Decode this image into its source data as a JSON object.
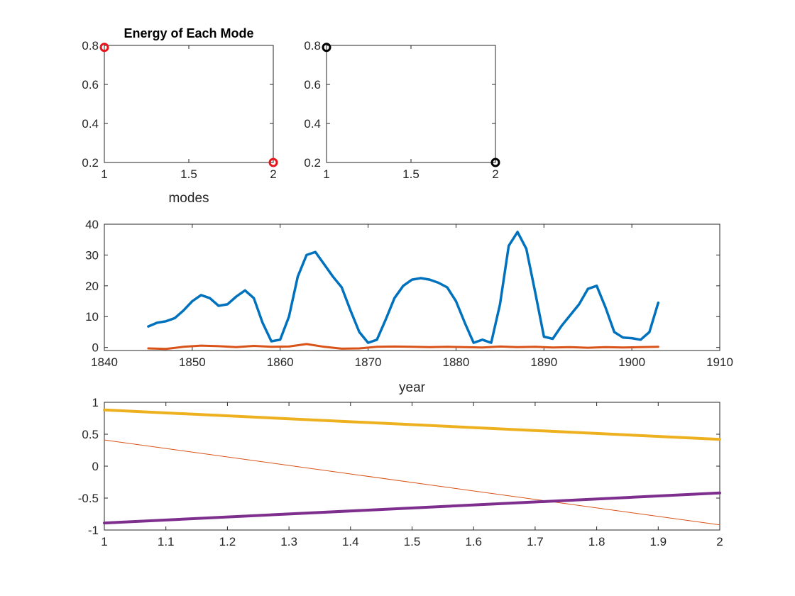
{
  "figure": {
    "background": "#ffffff"
  },
  "chart_data": [
    {
      "id": "energy-left",
      "type": "scatter",
      "title": "Energy of Each Mode",
      "xlabel": "modes",
      "ylabel": "",
      "xlim": [
        1,
        2
      ],
      "ylim": [
        0.2,
        0.8
      ],
      "xticks": [
        "1",
        "1.5",
        "2"
      ],
      "yticks": [
        "0.2",
        "0.4",
        "0.6",
        "0.8"
      ],
      "grid": false,
      "series": [
        {
          "color": "#e8141a",
          "marker": "circle",
          "x": [
            1,
            2
          ],
          "y": [
            0.79,
            0.2
          ]
        }
      ]
    },
    {
      "id": "energy-right",
      "type": "scatter",
      "title": "",
      "xlabel": "",
      "ylabel": "",
      "xlim": [
        1,
        2
      ],
      "ylim": [
        0.2,
        0.8
      ],
      "xticks": [
        "1",
        "1.5",
        "2"
      ],
      "yticks": [
        "0.2",
        "0.4",
        "0.6",
        "0.8"
      ],
      "grid": false,
      "series": [
        {
          "color": "#000000",
          "marker": "circle",
          "x": [
            1,
            2
          ],
          "y": [
            0.79,
            0.2
          ]
        }
      ]
    },
    {
      "id": "modes-vs-year",
      "type": "line",
      "title": "",
      "xlabel": "year",
      "ylabel": "",
      "xlim": [
        1840,
        1910
      ],
      "ylim": [
        -1,
        40
      ],
      "xticks": [
        "1840",
        "1850",
        "1860",
        "1870",
        "1880",
        "1890",
        "1900",
        "1910"
      ],
      "yticks": [
        "0",
        "10",
        "20",
        "30",
        "40"
      ],
      "grid": false,
      "series": [
        {
          "color": "#0072bd",
          "width": 3.5,
          "x": [
            1845,
            1846,
            1847,
            1848,
            1849,
            1850,
            1851,
            1852,
            1853,
            1854,
            1855,
            1856,
            1857,
            1858,
            1859,
            1860,
            1861,
            1862,
            1863,
            1864,
            1865,
            1866,
            1867,
            1868,
            1869,
            1870,
            1871,
            1872,
            1873,
            1874,
            1875,
            1876,
            1877,
            1878,
            1879,
            1880,
            1881,
            1882,
            1883,
            1884,
            1885,
            1886,
            1887,
            1888,
            1889,
            1890,
            1891,
            1892,
            1893,
            1894,
            1895,
            1896,
            1897,
            1898,
            1899,
            1900,
            1901,
            1902,
            1903
          ],
          "y": [
            6.8,
            8,
            8.5,
            9.5,
            12,
            15,
            17,
            16,
            13.5,
            14,
            16.5,
            18.5,
            16,
            8,
            2,
            2.5,
            10,
            23,
            30,
            31,
            27,
            23,
            19.5,
            12,
            5,
            1.5,
            2.5,
            9,
            16,
            20,
            22,
            22.5,
            22,
            21,
            19.5,
            15,
            8,
            1.5,
            2.5,
            1.5,
            14,
            33,
            37.5,
            32,
            18,
            3.5,
            2.8,
            7,
            10.5,
            14,
            19,
            20,
            13,
            5,
            3.2,
            3,
            2.5,
            5,
            14.5
          ]
        },
        {
          "color": "#d95319",
          "width": 3,
          "x": [
            1845,
            1847,
            1849,
            1851,
            1853,
            1855,
            1857,
            1859,
            1861,
            1863,
            1865,
            1867,
            1869,
            1871,
            1873,
            1875,
            1877,
            1879,
            1881,
            1883,
            1885,
            1887,
            1889,
            1891,
            1893,
            1895,
            1897,
            1899,
            1901,
            1903
          ],
          "y": [
            -0.3,
            -0.5,
            0.2,
            0.6,
            0.4,
            0.1,
            0.5,
            0.2,
            0.3,
            1.1,
            0.2,
            -0.4,
            -0.3,
            0.2,
            0.3,
            0.2,
            0.1,
            0.2,
            0.1,
            0,
            0.3,
            0.1,
            0.2,
            0,
            0.1,
            -0.1,
            0.1,
            0,
            0.1,
            0.2
          ]
        }
      ]
    },
    {
      "id": "linear-modes",
      "type": "line",
      "title": "",
      "xlabel": "",
      "ylabel": "",
      "xlim": [
        1,
        2
      ],
      "ylim": [
        -1,
        1
      ],
      "xticks": [
        "1",
        "1.1",
        "1.2",
        "1.3",
        "1.4",
        "1.5",
        "1.6",
        "1.7",
        "1.8",
        "1.9",
        "2"
      ],
      "yticks": [
        "-1",
        "-0.5",
        "0",
        "0.5",
        "1"
      ],
      "grid": false,
      "series": [
        {
          "color": "#0072bd",
          "width": 1.5,
          "x": [
            1,
            2
          ],
          "y": [
            -0.9,
            -0.42
          ]
        },
        {
          "color": "#d95319",
          "width": 1,
          "x": [
            1,
            2
          ],
          "y": [
            0.41,
            -0.92
          ]
        },
        {
          "color": "#edb120",
          "width": 4,
          "x": [
            1,
            2
          ],
          "y": [
            0.88,
            0.42
          ]
        },
        {
          "color": "#7e2f8e",
          "width": 4,
          "x": [
            1,
            2
          ],
          "y": [
            -0.89,
            -0.42
          ]
        }
      ]
    }
  ]
}
